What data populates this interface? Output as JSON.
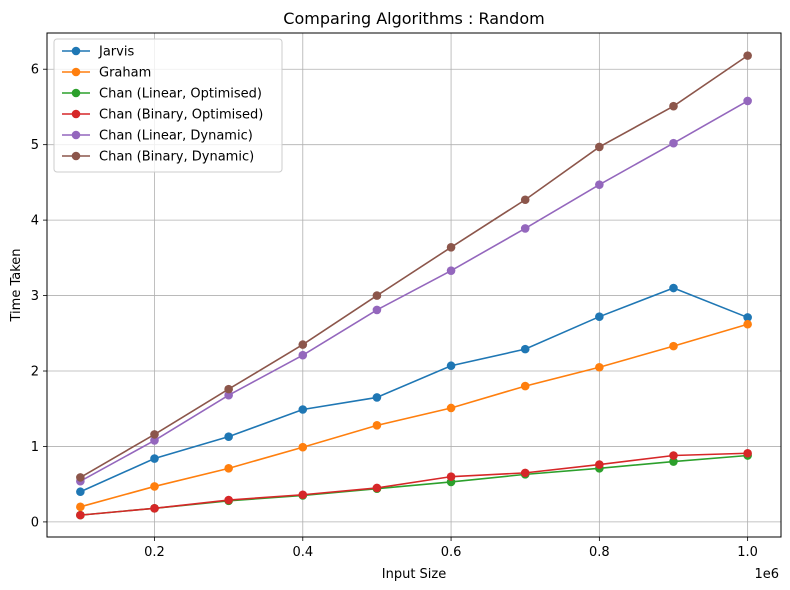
{
  "chart_data": {
    "type": "line",
    "title": "Comparing Algorithms : Random",
    "xlabel": "Input Size",
    "ylabel": "Time Taken",
    "x_offset_label": "1e6",
    "x": [
      100000,
      200000,
      300000,
      400000,
      500000,
      600000,
      700000,
      800000,
      900000,
      1000000
    ],
    "xlim": [
      55000,
      1045000
    ],
    "ylim": [
      -0.2,
      6.48
    ],
    "xticks": [
      200000,
      400000,
      600000,
      800000,
      1000000
    ],
    "xtick_labels": [
      "0.2",
      "0.4",
      "0.6",
      "0.8",
      "1.0"
    ],
    "yticks": [
      0,
      1,
      2,
      3,
      4,
      5,
      6
    ],
    "ytick_labels": [
      "0",
      "1",
      "2",
      "3",
      "4",
      "5",
      "6"
    ],
    "grid": true,
    "legend_position": "top-left",
    "series": [
      {
        "name": "Jarvis",
        "color": "#1f77b4",
        "values": [
          0.4,
          0.84,
          1.13,
          1.49,
          1.65,
          2.07,
          2.29,
          2.72,
          3.1,
          2.71
        ]
      },
      {
        "name": "Graham",
        "color": "#ff7f0e",
        "values": [
          0.2,
          0.47,
          0.71,
          0.99,
          1.28,
          1.51,
          1.8,
          2.05,
          2.33,
          2.62
        ]
      },
      {
        "name": "Chan (Linear, Optimised)",
        "color": "#2ca02c",
        "values": [
          0.09,
          0.18,
          0.28,
          0.35,
          0.44,
          0.53,
          0.63,
          0.71,
          0.8,
          0.88
        ]
      },
      {
        "name": "Chan (Binary, Optimised)",
        "color": "#d62728",
        "values": [
          0.09,
          0.18,
          0.29,
          0.36,
          0.45,
          0.6,
          0.65,
          0.76,
          0.88,
          0.91
        ]
      },
      {
        "name": "Chan (Linear, Dynamic)",
        "color": "#9467bd",
        "values": [
          0.54,
          1.08,
          1.68,
          2.21,
          2.81,
          3.33,
          3.89,
          4.47,
          5.02,
          5.58
        ]
      },
      {
        "name": "Chan (Binary, Dynamic)",
        "color": "#8c564b",
        "values": [
          0.59,
          1.16,
          1.76,
          2.35,
          3.0,
          3.64,
          4.27,
          4.97,
          5.51,
          6.18
        ]
      }
    ]
  }
}
